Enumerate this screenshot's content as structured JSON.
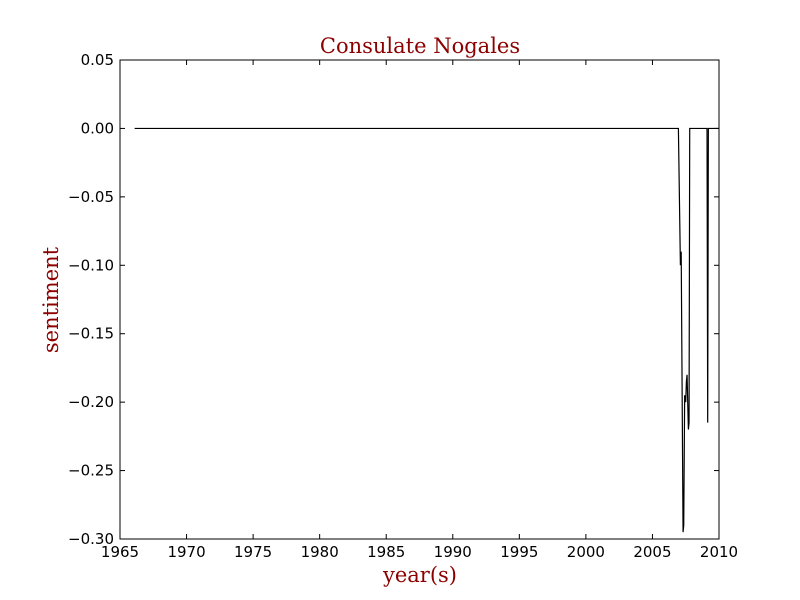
{
  "chart_data": {
    "type": "line",
    "title": "Consulate Nogales",
    "xlabel": "year(s)",
    "ylabel": "sentiment",
    "xlim": [
      1965,
      2010
    ],
    "ylim": [
      -0.3,
      0.05
    ],
    "x_ticks": [
      "1965",
      "1970",
      "1975",
      "1980",
      "1985",
      "1990",
      "1995",
      "2000",
      "2005",
      "2010"
    ],
    "y_ticks": [
      "0.05",
      "0.00",
      "−0.05",
      "−0.10",
      "−0.15",
      "−0.20",
      "−0.25",
      "−0.30"
    ],
    "line_color": "#000000",
    "label_color": "#8b0000",
    "grid": false,
    "series": [
      {
        "x": [
          1966.1,
          2006.95,
          2007.1,
          2007.12,
          2007.14,
          2007.16,
          2007.3,
          2007.35,
          2007.42,
          2007.5,
          2007.55,
          2007.6,
          2007.7,
          2007.75,
          2007.8,
          2008.4,
          2009.1,
          2009.15,
          2009.2,
          2009.3,
          2010.0
        ],
        "y": [
          0.0,
          0.0,
          -0.1,
          -0.09,
          -0.1,
          -0.09,
          -0.295,
          -0.29,
          -0.195,
          -0.2,
          -0.185,
          -0.18,
          -0.22,
          -0.215,
          0.0,
          0.0,
          0.0,
          -0.215,
          0.0,
          0.0,
          0.0
        ]
      }
    ]
  }
}
